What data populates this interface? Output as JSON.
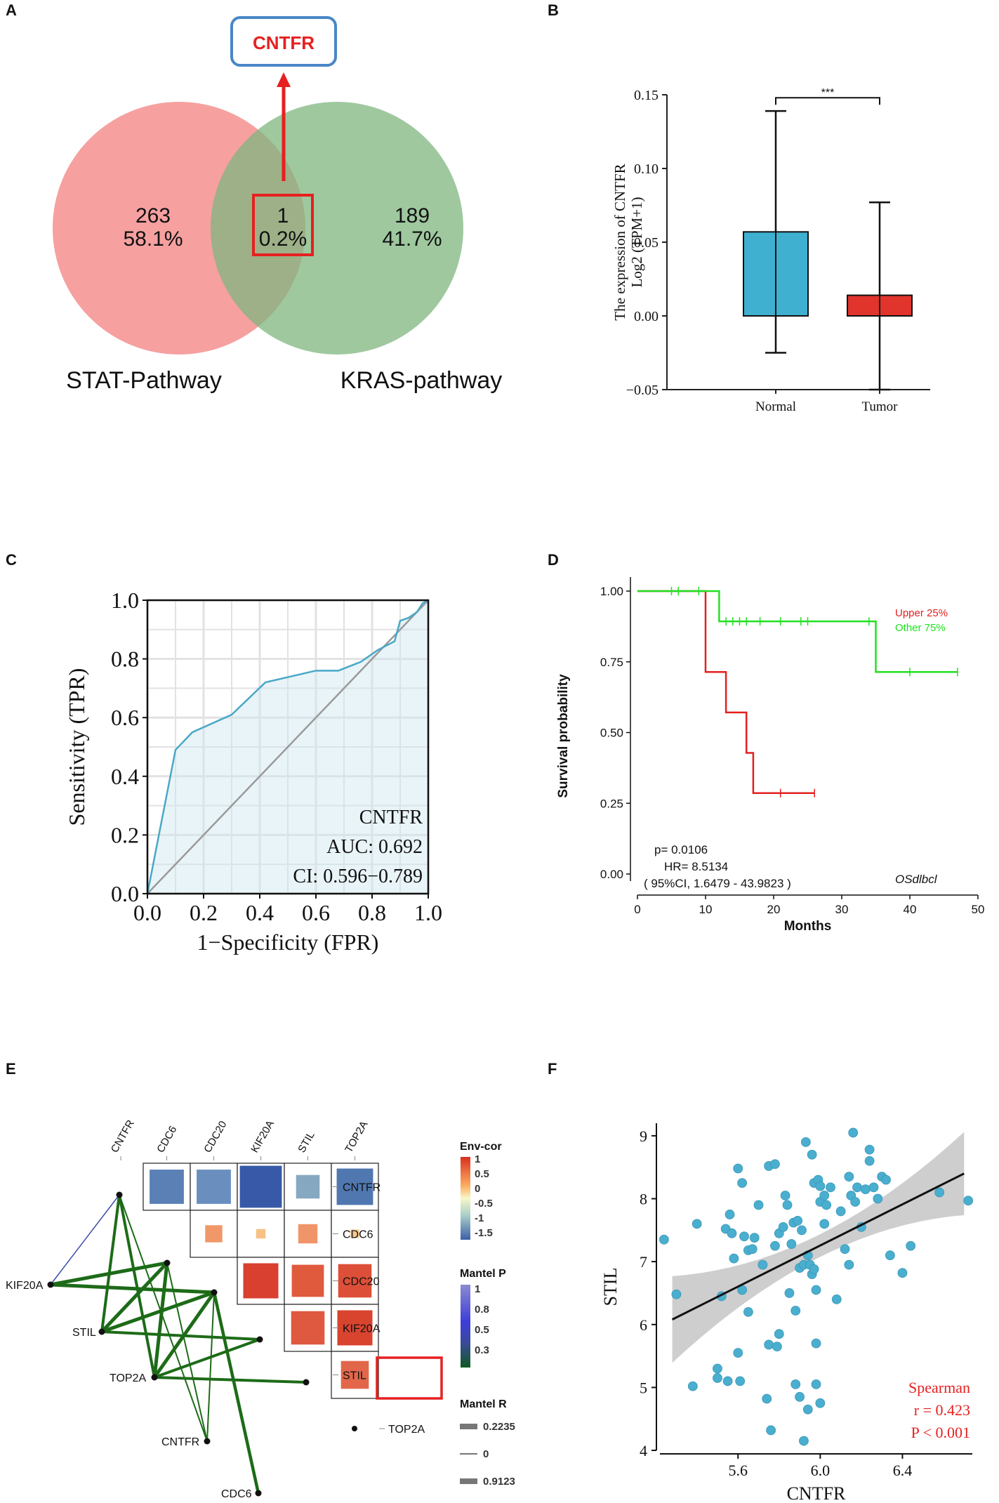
{
  "panels": {
    "A": {
      "letter": "A",
      "callout_label": "CNTFR",
      "sets": [
        {
          "name": "STAT-Pathway",
          "count": "263",
          "percent": "58.1%",
          "color": "#f48f8f"
        },
        {
          "name": "KRAS-pathway",
          "count": "189",
          "percent": "41.7%",
          "color": "#7fb67f"
        }
      ],
      "intersection": {
        "count": "1",
        "percent": "0.2%"
      },
      "chart_data": {
        "type": "venn",
        "sets": [
          "STAT-Pathway",
          "KRAS-pathway"
        ],
        "only_left": 263,
        "only_right": 189,
        "intersection": 1,
        "percents": [
          "58.1%",
          "0.2%",
          "41.7%"
        ],
        "highlight": "CNTFR"
      }
    },
    "B": {
      "letter": "B",
      "chart_data": {
        "type": "box",
        "ylabel_line1": "The expression of CNTFR",
        "ylabel_line2": "Log2 (TPM+1)",
        "ylim": [
          -0.05,
          0.15
        ],
        "yticks": [
          -0.05,
          0.0,
          0.05,
          0.1,
          0.15
        ],
        "ytick_labels": [
          "−0.05",
          "0.00",
          "0.05",
          "0.10",
          "0.15"
        ],
        "significance": "***",
        "groups": [
          {
            "name": "Normal",
            "color": "#3fb0cf",
            "bar_top": 0.057,
            "bar_bottom": 0.0,
            "whisker_high": 0.139,
            "whisker_low": -0.025
          },
          {
            "name": "Tumor",
            "color": "#e0342c",
            "bar_top": 0.014,
            "bar_bottom": 0.0,
            "whisker_high": 0.077,
            "whisker_low": -0.05
          }
        ]
      }
    },
    "C": {
      "letter": "C",
      "chart_data": {
        "type": "roc",
        "xlabel": "1−Specificity (FPR)",
        "ylabel": "Sensitivity (TPR)",
        "xlim": [
          0,
          1
        ],
        "ylim": [
          0,
          1
        ],
        "xtick_labels": [
          "0.0",
          "0.2",
          "0.4",
          "0.6",
          "0.8",
          "1.0"
        ],
        "ytick_labels": [
          "0.0",
          "0.2",
          "0.4",
          "0.6",
          "0.8",
          "1.0"
        ],
        "gene": "CNTFR",
        "auc_text": "AUC: 0.692",
        "ci_text": "CI: 0.596−0.789",
        "fpr": [
          0,
          0.1,
          0.16,
          0.3,
          0.42,
          0.6,
          0.68,
          0.76,
          0.82,
          0.88,
          0.9,
          0.93,
          0.96,
          0.98,
          1.0
        ],
        "tpr": [
          0,
          0.49,
          0.55,
          0.61,
          0.72,
          0.76,
          0.76,
          0.79,
          0.83,
          0.86,
          0.93,
          0.94,
          0.96,
          0.99,
          1.0
        ]
      }
    },
    "D": {
      "letter": "D",
      "chart_data": {
        "type": "kaplan-meier",
        "xlabel": "Months",
        "ylabel": "Survival probability",
        "xlim": [
          0,
          50
        ],
        "ylim": [
          0,
          1
        ],
        "xtick_labels": [
          "0",
          "10",
          "20",
          "30",
          "40",
          "50"
        ],
        "ytick_labels": [
          "0.00",
          "0.25",
          "0.50",
          "0.75",
          "1.00"
        ],
        "series": [
          {
            "name": "Upper 25%",
            "color": "#e32020",
            "steps": [
              [
                0,
                1.0
              ],
              [
                10,
                0.714
              ],
              [
                13,
                0.571
              ],
              [
                16,
                0.428
              ],
              [
                17,
                0.286
              ],
              [
                26,
                0.286
              ]
            ],
            "censor": [
              21,
              26
            ]
          },
          {
            "name": "Other  75%",
            "color": "#22e022",
            "steps": [
              [
                0,
                1.0
              ],
              [
                12,
                0.893
              ],
              [
                35,
                0.714
              ],
              [
                47,
                0.714
              ]
            ],
            "censor": [
              5,
              6,
              9,
              13,
              14,
              15,
              16,
              18,
              21,
              24,
              25,
              34,
              40,
              47
            ]
          }
        ],
        "stats": {
          "p": "p= 0.0106",
          "hr": "HR= 8.5134",
          "ci": "( 95%CI, 1.6479 - 43.9823 )"
        },
        "dataset": "OSdlbcl"
      }
    },
    "E": {
      "letter": "E",
      "chart_data": {
        "type": "correlation-heatmap-mantel",
        "genes": [
          "CNTFR",
          "CDC6",
          "CDC20",
          "KIF20A",
          "STIL",
          "TOP2A"
        ],
        "highlight_gene": "STIL",
        "cells": [
          {
            "row": "CNTFR",
            "col": "CDC6",
            "value": -1.3,
            "size": 0.8,
            "color": "#5a80b5"
          },
          {
            "row": "CNTFR",
            "col": "CDC20",
            "value": -1.3,
            "size": 0.8,
            "color": "#6a8fbf"
          },
          {
            "row": "CNTFR",
            "col": "KIF20A",
            "value": -1.6,
            "size": 0.98,
            "color": "#3859a8"
          },
          {
            "row": "CNTFR",
            "col": "STIL",
            "value": -0.9,
            "size": 0.55,
            "color": "#86a8c0"
          },
          {
            "row": "CNTFR",
            "col": "TOP2A",
            "value": -1.4,
            "size": 0.85,
            "color": "#5077b0"
          },
          {
            "row": "CDC6",
            "col": "CDC20",
            "value": 0.3,
            "size": 0.4,
            "color": "#f0986a"
          },
          {
            "row": "CDC6",
            "col": "KIF20A",
            "value": 0.15,
            "size": 0.22,
            "color": "#f6c184"
          },
          {
            "row": "CDC6",
            "col": "STIL",
            "value": 0.3,
            "size": 0.45,
            "color": "#f0956a"
          },
          {
            "row": "CDC6",
            "col": "TOP2A",
            "value": 0.15,
            "size": 0.2,
            "color": "#f6c88e"
          },
          {
            "row": "CDC20",
            "col": "KIF20A",
            "value": 0.95,
            "size": 0.82,
            "color": "#d9402f"
          },
          {
            "row": "CDC20",
            "col": "STIL",
            "value": 0.8,
            "size": 0.75,
            "color": "#e05a3e"
          },
          {
            "row": "CDC20",
            "col": "TOP2A",
            "value": 0.85,
            "size": 0.78,
            "color": "#dd4f38"
          },
          {
            "row": "KIF20A",
            "col": "STIL",
            "value": 0.8,
            "size": 0.78,
            "color": "#df5840"
          },
          {
            "row": "KIF20A",
            "col": "TOP2A",
            "value": 0.9,
            "size": 0.82,
            "color": "#d9442f"
          },
          {
            "row": "STIL",
            "col": "TOP2A",
            "value": 0.7,
            "size": 0.65,
            "color": "#e2674a"
          }
        ],
        "network_nodes": [
          "KIF20A",
          "STIL",
          "TOP2A",
          "CNTFR",
          "CDC6"
        ],
        "legend": {
          "envcor_title": "Env-cor",
          "envcor_labels": [
            "1",
            "0.5",
            "0",
            "-0.5",
            "-1",
            "-1.5"
          ],
          "mantelp_title": "Mantel P",
          "mantelp_labels": [
            "1",
            "0.8",
            "0.5",
            "0.3"
          ],
          "mantelr_title": "Mantel R",
          "mantelr_labels": [
            "0.2235",
            "0",
            "0.9123"
          ]
        }
      }
    },
    "F": {
      "letter": "F",
      "chart_data": {
        "type": "scatter",
        "xlabel": "CNTFR",
        "ylabel": "STIL",
        "xlim": [
          5.22,
          6.74
        ],
        "ylim": [
          4,
          9.2
        ],
        "xtick_labels": [
          "5.6",
          "6.0",
          "6.4"
        ],
        "ytick_labels": [
          "4",
          "5",
          "6",
          "7",
          "8",
          "9"
        ],
        "fit": {
          "x0": 5.28,
          "y0": 6.08,
          "x1": 6.7,
          "y1": 8.4
        },
        "stat_label": "Spearman",
        "r_text": "r = 0.423",
        "p_text": "P < 0.001",
        "points": [
          [
            5.24,
            7.35
          ],
          [
            5.3,
            6.48
          ],
          [
            5.38,
            5.02
          ],
          [
            5.4,
            7.6
          ],
          [
            5.5,
            5.3
          ],
          [
            5.5,
            5.15
          ],
          [
            5.52,
            6.45
          ],
          [
            5.54,
            7.52
          ],
          [
            5.55,
            5.1
          ],
          [
            5.56,
            7.75
          ],
          [
            5.57,
            7.45
          ],
          [
            5.58,
            7.05
          ],
          [
            5.6,
            8.48
          ],
          [
            5.6,
            5.55
          ],
          [
            5.61,
            5.1
          ],
          [
            5.62,
            8.25
          ],
          [
            5.62,
            6.55
          ],
          [
            5.63,
            7.4
          ],
          [
            5.65,
            7.18
          ],
          [
            5.65,
            6.2
          ],
          [
            5.67,
            7.2
          ],
          [
            5.68,
            7.38
          ],
          [
            5.7,
            7.9
          ],
          [
            5.72,
            6.95
          ],
          [
            5.74,
            4.82
          ],
          [
            5.75,
            8.52
          ],
          [
            5.75,
            5.68
          ],
          [
            5.76,
            4.32
          ],
          [
            5.78,
            8.55
          ],
          [
            5.78,
            7.25
          ],
          [
            5.79,
            5.65
          ],
          [
            5.8,
            5.85
          ],
          [
            5.8,
            7.45
          ],
          [
            5.82,
            7.55
          ],
          [
            5.83,
            8.05
          ],
          [
            5.84,
            7.9
          ],
          [
            5.85,
            6.5
          ],
          [
            5.86,
            7.28
          ],
          [
            5.87,
            7.62
          ],
          [
            5.88,
            6.22
          ],
          [
            5.88,
            5.05
          ],
          [
            5.89,
            7.65
          ],
          [
            5.9,
            4.85
          ],
          [
            5.9,
            6.9
          ],
          [
            5.91,
            7.5
          ],
          [
            5.92,
            6.95
          ],
          [
            5.92,
            4.15
          ],
          [
            5.93,
            8.9
          ],
          [
            5.94,
            7.1
          ],
          [
            5.94,
            4.65
          ],
          [
            5.95,
            6.95
          ],
          [
            5.96,
            8.7
          ],
          [
            5.96,
            6.8
          ],
          [
            5.97,
            8.25
          ],
          [
            5.97,
            6.88
          ],
          [
            5.98,
            6.55
          ],
          [
            5.98,
            5.7
          ],
          [
            5.98,
            5.05
          ],
          [
            5.99,
            8.3
          ],
          [
            6.0,
            8.2
          ],
          [
            6.0,
            7.95
          ],
          [
            6.0,
            4.75
          ],
          [
            6.02,
            7.6
          ],
          [
            6.02,
            8.05
          ],
          [
            6.03,
            7.9
          ],
          [
            6.05,
            8.18
          ],
          [
            6.08,
            6.4
          ],
          [
            6.1,
            7.8
          ],
          [
            6.12,
            7.2
          ],
          [
            6.14,
            8.35
          ],
          [
            6.14,
            6.95
          ],
          [
            6.15,
            8.05
          ],
          [
            6.16,
            9.05
          ],
          [
            6.17,
            7.95
          ],
          [
            6.18,
            8.18
          ],
          [
            6.2,
            7.55
          ],
          [
            6.22,
            8.15
          ],
          [
            6.24,
            8.6
          ],
          [
            6.24,
            8.78
          ],
          [
            6.26,
            8.18
          ],
          [
            6.28,
            8.0
          ],
          [
            6.3,
            8.35
          ],
          [
            6.32,
            8.3
          ],
          [
            6.34,
            7.1
          ],
          [
            6.4,
            6.82
          ],
          [
            6.44,
            7.25
          ],
          [
            6.58,
            8.1
          ],
          [
            6.72,
            7.97
          ]
        ]
      }
    }
  }
}
